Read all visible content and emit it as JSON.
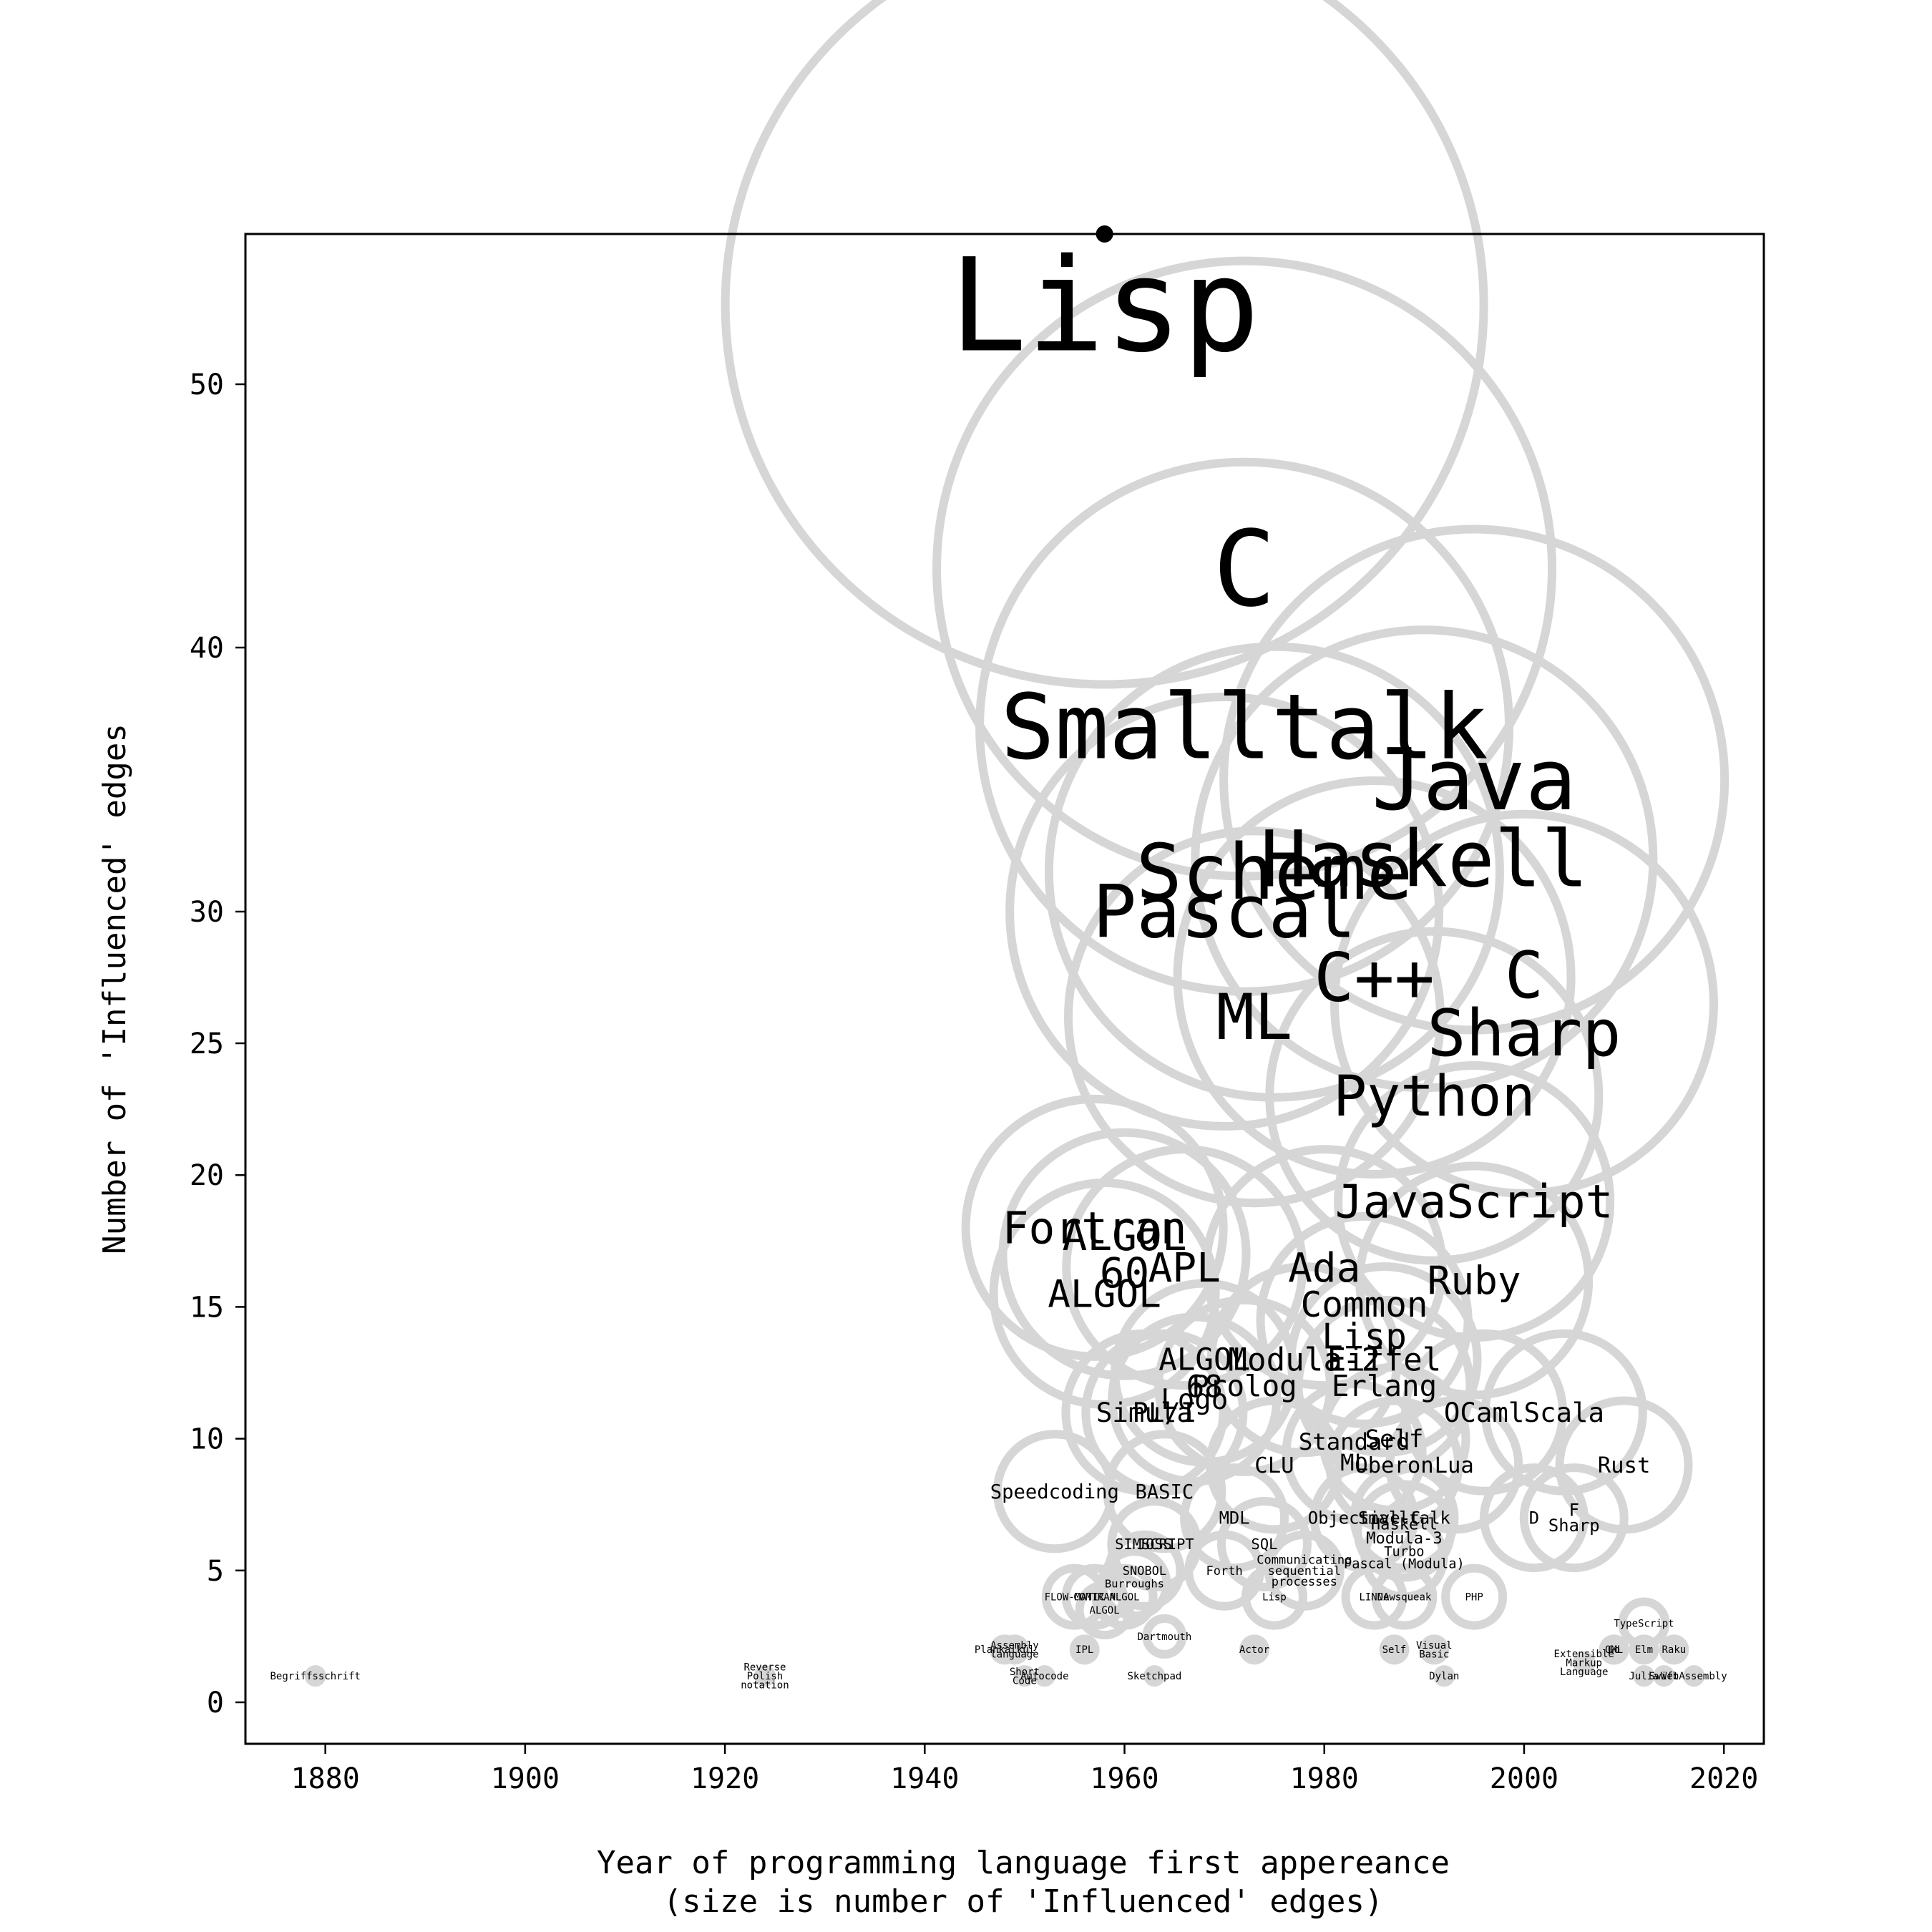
{
  "chart_data": {
    "type": "scatter",
    "xlabel": "Year of programming language first appereance\n(size is number of 'Influenced' edges)",
    "ylabel": "Number of 'Influenced' edges",
    "xlim": [
      1872,
      2024
    ],
    "ylim": [
      -1.6,
      55.7
    ],
    "xticks": [
      1880,
      1900,
      1920,
      1940,
      1960,
      1980,
      2000,
      2020
    ],
    "yticks": [
      0,
      5,
      10,
      15,
      20,
      25,
      30,
      40,
      50
    ],
    "y_scale": "piecewise",
    "marker_color": "#d6d6d6",
    "points": [
      {
        "name": "Lisp",
        "x": 1958,
        "y": 53
      },
      {
        "name": "C",
        "x": 1972,
        "y": 43
      },
      {
        "name": "Smalltalk",
        "x": 1972,
        "y": 37
      },
      {
        "name": "Java",
        "x": 1995,
        "y": 35
      },
      {
        "name": "Haskell",
        "x": 1990,
        "y": 32
      },
      {
        "name": "Scheme",
        "x": 1975,
        "y": 31.5
      },
      {
        "name": "Pascal",
        "x": 1970,
        "y": 30
      },
      {
        "name": "C++",
        "x": 1985,
        "y": 27.5
      },
      {
        "name": "ML",
        "x": 1973,
        "y": 26
      },
      {
        "name": "C\nSharp",
        "x": 2000,
        "y": 26.5
      },
      {
        "name": "Python",
        "x": 1991,
        "y": 23
      },
      {
        "name": "JavaScript",
        "x": 1995,
        "y": 19
      },
      {
        "name": "Fortran",
        "x": 1957,
        "y": 18
      },
      {
        "name": "ALGOL\n60",
        "x": 1960,
        "y": 17
      },
      {
        "name": "APL",
        "x": 1966,
        "y": 16.5
      },
      {
        "name": "ALGOL",
        "x": 1958,
        "y": 15.5
      },
      {
        "name": "Ada",
        "x": 1980,
        "y": 16.5
      },
      {
        "name": "Ruby",
        "x": 1995,
        "y": 16
      },
      {
        "name": "Common\nLisp",
        "x": 1984,
        "y": 14.5
      },
      {
        "name": "ALGOL\n68",
        "x": 1968,
        "y": 12.5
      },
      {
        "name": "Modula-2",
        "x": 1978,
        "y": 13
      },
      {
        "name": "Eiffel",
        "x": 1986,
        "y": 13
      },
      {
        "name": "Logo",
        "x": 1967,
        "y": 11.5
      },
      {
        "name": "Prolog",
        "x": 1972,
        "y": 12
      },
      {
        "name": "Erlang",
        "x": 1986,
        "y": 12
      },
      {
        "name": "Simula",
        "x": 1962,
        "y": 11
      },
      {
        "name": "PL/I",
        "x": 1964,
        "y": 11
      },
      {
        "name": "OCaml",
        "x": 1996,
        "y": 11
      },
      {
        "name": "Scala",
        "x": 2004,
        "y": 11
      },
      {
        "name": "Self",
        "x": 1987,
        "y": 10
      },
      {
        "name": "Standard\nML",
        "x": 1983,
        "y": 9.5
      },
      {
        "name": "CLU",
        "x": 1975,
        "y": 9
      },
      {
        "name": "Oberon",
        "x": 1987,
        "y": 9
      },
      {
        "name": "Lua",
        "x": 1993,
        "y": 9
      },
      {
        "name": "Rust",
        "x": 2010,
        "y": 9
      },
      {
        "name": "Speedcoding",
        "x": 1953,
        "y": 8
      },
      {
        "name": "BASIC",
        "x": 1964,
        "y": 8
      },
      {
        "name": "MDL",
        "x": 1971,
        "y": 7
      },
      {
        "name": "Objective-C",
        "x": 1984,
        "y": 7
      },
      {
        "name": "Haskell\nModula-3",
        "x": 1988,
        "y": 6.5
      },
      {
        "name": "Smalltalk",
        "x": 1988,
        "y": 7
      },
      {
        "name": "D",
        "x": 2001,
        "y": 7
      },
      {
        "name": "F\nSharp",
        "x": 2005,
        "y": 7
      },
      {
        "name": "JOSS",
        "x": 1963,
        "y": 6
      },
      {
        "name": "SIMSCRIPT",
        "x": 1963,
        "y": 6
      },
      {
        "name": "SQL",
        "x": 1974,
        "y": 6
      },
      {
        "name": "Communicating\nsequential\nprocesses",
        "x": 1978,
        "y": 5
      },
      {
        "name": "Turbo\nPascal (Modula)",
        "x": 1988,
        "y": 5.5
      },
      {
        "name": "SNOBOL",
        "x": 1962,
        "y": 5
      },
      {
        "name": "Burroughs",
        "x": 1961,
        "y": 4.5
      },
      {
        "name": "Forth",
        "x": 1970,
        "y": 5
      },
      {
        "name": "FLOW-MATIC",
        "x": 1955,
        "y": 4
      },
      {
        "name": "COMTRAN",
        "x": 1957,
        "y": 4
      },
      {
        "name": "PHP",
        "x": 1995,
        "y": 4
      },
      {
        "name": "ALGOL",
        "x": 1960,
        "y": 4
      },
      {
        "name": "Lisp",
        "x": 1975,
        "y": 4
      },
      {
        "name": "LINDA",
        "x": 1985,
        "y": 4
      },
      {
        "name": "Newsqueak",
        "x": 1988,
        "y": 4
      },
      {
        "name": "ALGOL",
        "x": 1958,
        "y": 3.5
      },
      {
        "name": "Assembly\nlanguage",
        "x": 1949,
        "y": 2
      },
      {
        "name": "Dartmouth",
        "x": 1964,
        "y": 2.5
      },
      {
        "name": "Actor",
        "x": 1973,
        "y": 2
      },
      {
        "name": "Visual\nBasic",
        "x": 1991,
        "y": 2
      },
      {
        "name": "Extensible\nMarkup\nLanguage",
        "x": 2006,
        "y": 1.5
      },
      {
        "name": "QML",
        "x": 2009,
        "y": 2
      },
      {
        "name": "Elm",
        "x": 2012,
        "y": 2
      },
      {
        "name": "Raku",
        "x": 2015,
        "y": 2
      },
      {
        "name": "WebAssembly",
        "x": 2017,
        "y": 1
      },
      {
        "name": "TypeScript",
        "x": 2012,
        "y": 3
      },
      {
        "name": "Begriffsschrift",
        "x": 1879,
        "y": 1
      },
      {
        "name": "Reverse\nPolish\nnotation",
        "x": 1924,
        "y": 1
      },
      {
        "name": "Plankalkül",
        "x": 1948,
        "y": 2
      },
      {
        "name": "Short\nCode",
        "x": 1950,
        "y": 1
      },
      {
        "name": "Autocode",
        "x": 1952,
        "y": 1
      },
      {
        "name": "IPL",
        "x": 1956,
        "y": 2
      },
      {
        "name": "Sketchpad",
        "x": 1963,
        "y": 1
      },
      {
        "name": "Self",
        "x": 1987,
        "y": 2
      },
      {
        "name": "Dylan",
        "x": 1992,
        "y": 1
      },
      {
        "name": "Go",
        "x": 2009,
        "y": 2
      },
      {
        "name": "Julia",
        "x": 2012,
        "y": 1
      },
      {
        "name": "Swift",
        "x": 2014,
        "y": 1
      }
    ]
  }
}
